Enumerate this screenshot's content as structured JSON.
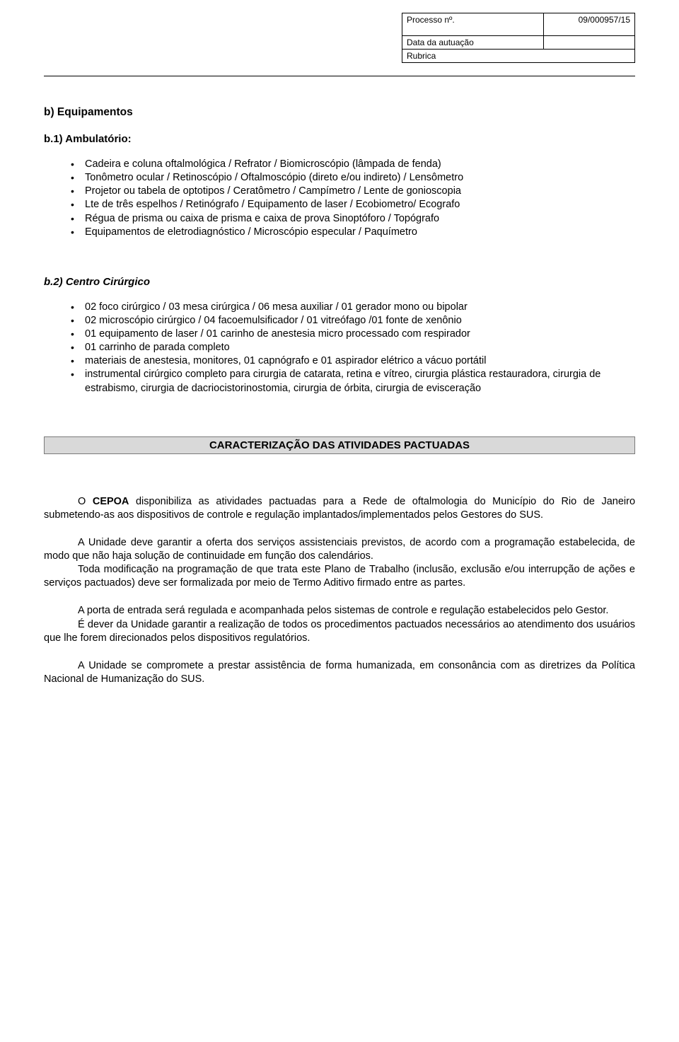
{
  "page_background": "#ffffff",
  "text_color": "#000000",
  "accent_box_bg": "#d9d9d9",
  "accent_box_border": "#7a7a7a",
  "base_font_size_pt": 11,
  "header": {
    "processo_label": "Processo nº.",
    "processo_valor": "09/000957/15",
    "data_autuacao_label": "Data da autuação",
    "data_autuacao_valor": "",
    "rubrica_label": "Rubrica",
    "rubrica_valor": ""
  },
  "sec_b": {
    "titulo": "b)  Equipamentos",
    "b1": {
      "titulo": "b.1) Ambulatório:",
      "itens": [
        "Cadeira e coluna oftalmológica / Refrator / Biomicroscópio (lâmpada de fenda)",
        "Tonômetro ocular / Retinoscópio / Oftalmoscópio (direto e/ou indireto) / Lensômetro",
        "Projetor ou tabela de optotipos / Ceratômetro / Campímetro / Lente de gonioscopia",
        "Lte de três espelhos / Retinógrafo / Equipamento de laser / Ecobiometro/ Ecografo",
        "Régua de prisma ou caixa de prisma e caixa de prova Sinoptóforo / Topógrafo",
        "Equipamentos de eletrodiagnóstico / Microscópio especular / Paquímetro"
      ]
    },
    "b2": {
      "titulo": "b.2) Centro Cirúrgico",
      "itens": [
        "02 foco cirúrgico / 03 mesa cirúrgica / 06 mesa auxiliar / 01 gerador mono ou bipolar",
        "02 microscópio cirúrgico / 04 facoemulsificador / 01 vitreófago  /01 fonte de xenônio",
        "01 equipamento de laser / 01 carinho de anestesia micro processado com respirador",
        "01 carrinho de parada completo",
        "materiais de anestesia, monitores, 01 capnógrafo e 01 aspirador elétrico a vácuo portátil",
        "instrumental cirúrgico completo para cirurgia de catarata, retina e vítreo, cirurgia plástica restauradora, cirurgia de estrabismo, cirurgia de dacriocistorinostomia, cirurgia de órbita, cirurgia de evisceração"
      ]
    }
  },
  "caracterizacao": {
    "titulo": "CARACTERIZAÇÃO DAS ATIVIDADES PACTUADAS",
    "p1_pre": "O ",
    "p1_bold": "CEPOA",
    "p1_post": " disponibiliza as atividades pactuadas para a Rede de oftalmologia do Município do Rio de Janeiro submetendo-as aos dispositivos de controle e regulação implantados/implementados pelos Gestores do SUS.",
    "p2": "A Unidade deve garantir a oferta dos serviços assistenciais previstos, de acordo com a programação estabelecida, de modo que não haja solução de continuidade em função dos calendários.",
    "p3": "Toda modificação na programação de que trata este Plano de Trabalho (inclusão, exclusão e/ou interrupção de ações e serviços pactuados) deve ser formalizada por meio de Termo Aditivo firmado entre as partes.",
    "p4": "A porta de entrada será regulada e acompanhada pelos sistemas de controle e regulação estabelecidos pelo Gestor.",
    "p5": "É dever da Unidade garantir a realização de todos os procedimentos pactuados necessários ao atendimento dos usuários que lhe forem direcionados pelos dispositivos regulatórios.",
    "p6": "A Unidade se compromete a prestar assistência de forma humanizada, em consonância com as diretrizes da Política Nacional de Humanização do SUS."
  }
}
